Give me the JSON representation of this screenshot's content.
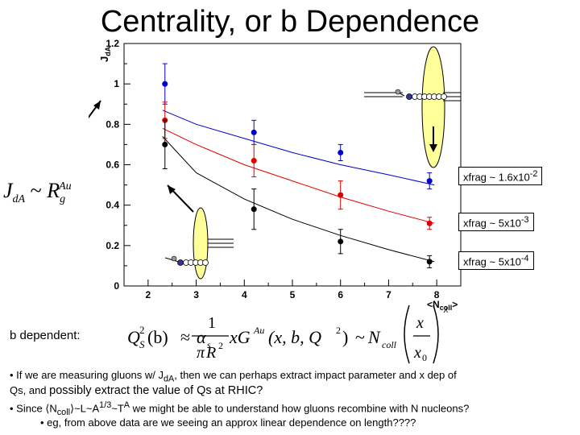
{
  "title": "Centrality, or b Dependence",
  "chart_data": {
    "type": "scatter",
    "ylabel": "J",
    "ylabel_sub": "dA",
    "xlabel": "<N",
    "xlabel_sub": "coll",
    "xlabel_end": ">",
    "xlim": [
      1.5,
      8.5
    ],
    "ylim": [
      0,
      1.2
    ],
    "x_ticks": [
      "2",
      "3",
      "4",
      "5",
      "6",
      "7",
      "8"
    ],
    "y_ticks": [
      "0",
      "0.2",
      "0.4",
      "0.6",
      "0.8",
      "1",
      "1.2"
    ],
    "x_tick_values": [
      2,
      3,
      4,
      5,
      6,
      7,
      8
    ],
    "y_tick_values": [
      0,
      0.2,
      0.4,
      0.6,
      0.8,
      1.0,
      1.2
    ],
    "series": [
      {
        "color": "#0000cc",
        "x": [
          2.35,
          4.2,
          6.0,
          7.85
        ],
        "y": [
          1.0,
          0.76,
          0.66,
          0.52
        ],
        "err": [
          0.1,
          0.06,
          0.04,
          0.04
        ],
        "fit": [
          0.87,
          0.8,
          0.73,
          0.66,
          0.6,
          0.55,
          0.5
        ]
      },
      {
        "color": "#dd0000",
        "x": [
          2.35,
          4.2,
          6.0,
          7.85
        ],
        "y": [
          0.82,
          0.62,
          0.45,
          0.31
        ],
        "err": [
          0.09,
          0.08,
          0.07,
          0.03
        ],
        "fit": [
          0.78,
          0.7,
          0.6,
          0.52,
          0.44,
          0.37,
          0.31
        ]
      },
      {
        "color": "#000000",
        "x": [
          2.35,
          4.2,
          6.0,
          7.85
        ],
        "y": [
          0.7,
          0.38,
          0.22,
          0.12
        ],
        "err": [
          0.12,
          0.1,
          0.06,
          0.03
        ],
        "fit": [
          0.74,
          0.56,
          0.43,
          0.33,
          0.25,
          0.18,
          0.12
        ]
      }
    ],
    "fit_x": [
      2.3,
      3,
      4,
      5,
      6,
      7,
      7.95
    ],
    "legend": [
      {
        "base": "xfrag ~ 1.6x10",
        "exp": "-2"
      },
      {
        "base": "xfrag ~ 5x10",
        "exp": "-3"
      },
      {
        "base": "xfrag ~ 5x10",
        "exp": "-4"
      }
    ]
  },
  "formula_rg": {
    "j": "J",
    "j_sub": "dA",
    "sim": "~",
    "r": "R",
    "r_sub": "g",
    "r_sup": "Au"
  },
  "b_dependent": "b dependent:",
  "qs_formula": {
    "q": "Q",
    "q_sup": "2",
    "q_sub": "S",
    "arg_b": "(b)",
    "approx": "≈",
    "alpha": "α",
    "alpha_sub": "s",
    "frac_num": "1",
    "pi": "π",
    "R": "R",
    "R_sup": "2",
    "xG": "xG",
    "G_sup": "Au",
    "args": "(x, b, Q",
    "args_sup": "2",
    "args_close": ")",
    "sim": "~",
    "N": "N",
    "N_sub": "coll",
    "x_num": "x",
    "x_den": "x",
    "x_den_sub": "0"
  },
  "notes": {
    "line1_a": "• If we are measuring gluons w/ J",
    "line1_sub": "dA",
    "line1_b": ", then we can perhaps extract impact parameter and x  dep of",
    "line2_a": "Qs, and ",
    "line2_big": "possibly extract the value of Qs at RHIC?",
    "line3_a": "• Since ⟨N",
    "line3_sub": "coll",
    "line3_b": "⟩~L~A",
    "line3_sup": "1/3",
    "line3_c": "~T",
    "line3_sup2": "A",
    "line3_d": " we might be able to understand how gluons recombine with N nucleons?",
    "line4": "• eg, from above data are we seeing an approx linear dependence on length????"
  }
}
